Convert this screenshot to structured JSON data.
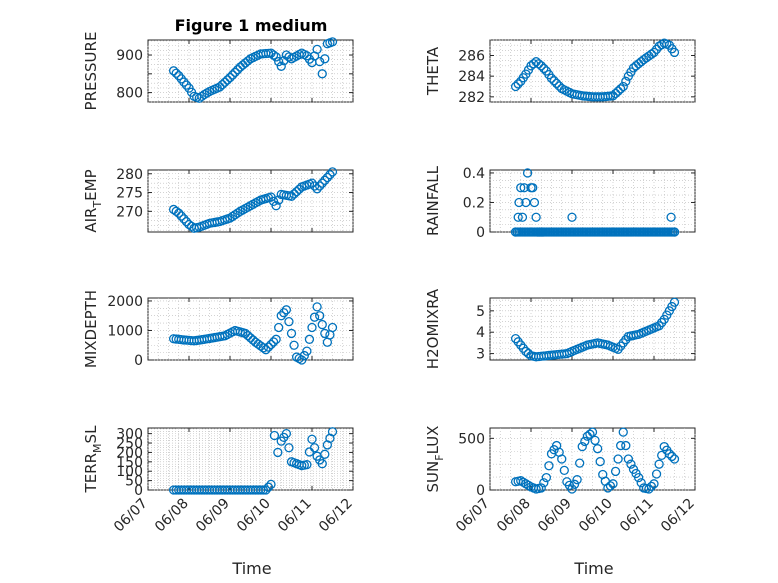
{
  "figure": {
    "title": "Figure 1 medium",
    "color": "#0072BD",
    "grid": true,
    "marker": "circle"
  },
  "chart_data": [
    {
      "id": "pressure",
      "type": "scatter",
      "ylabel": "PRESSURE",
      "ylim": [
        775,
        940
      ],
      "yticks": [
        800,
        850,
        900
      ],
      "yticklabels": [
        "800",
        "",
        "900"
      ],
      "xticklabels_visible": false,
      "title": "Figure 1 medium",
      "x": [
        "06/07 15:00",
        "06/07 18:00",
        "06/07 21:00",
        "06/08 00:00",
        "06/08 03:00",
        "06/08 06:00",
        "06/08 09:00",
        "06/08 12:00",
        "06/08 18:00",
        "06/09 00:00",
        "06/09 06:00",
        "06/09 12:00",
        "06/09 18:00",
        "06/10 00:00",
        "06/10 03:00",
        "06/10 06:00",
        "06/10 09:00",
        "06/10 12:00",
        "06/10 18:00",
        "06/10 21:00",
        "06/11 00:00",
        "06/11 03:00",
        "06/11 06:00",
        "06/11 09:00",
        "06/11 12:00"
      ],
      "y": [
        858,
        845,
        828,
        812,
        790,
        785,
        795,
        803,
        815,
        840,
        868,
        890,
        903,
        905,
        895,
        870,
        900,
        890,
        905,
        898,
        880,
        915,
        850,
        930,
        935
      ]
    },
    {
      "id": "theta",
      "type": "scatter",
      "ylabel": "THETA",
      "ylim": [
        281.5,
        287.5
      ],
      "yticks": [
        282,
        284,
        286
      ],
      "yticklabels": [
        "282",
        "284",
        "286"
      ],
      "xticklabels_visible": false,
      "x": [
        "06/07 15:00",
        "06/07 18:00",
        "06/07 21:00",
        "06/08 00:00",
        "06/08 03:00",
        "06/08 06:00",
        "06/08 09:00",
        "06/08 12:00",
        "06/08 18:00",
        "06/09 00:00",
        "06/09 06:00",
        "06/09 12:00",
        "06/09 18:00",
        "06/10 00:00",
        "06/10 06:00",
        "06/10 09:00",
        "06/10 12:00",
        "06/10 18:00",
        "06/11 00:00",
        "06/11 03:00",
        "06/11 06:00",
        "06/11 09:00",
        "06/11 12:00"
      ],
      "y": [
        283.0,
        283.5,
        284.2,
        285.0,
        285.4,
        285.0,
        284.5,
        283.8,
        282.8,
        282.3,
        282.1,
        282.0,
        282.0,
        282.1,
        283.0,
        284.0,
        284.8,
        285.6,
        286.3,
        286.9,
        287.2,
        287.0,
        286.3
      ]
    },
    {
      "id": "air_temp",
      "type": "scatter",
      "ylabel": "AIR_TEMP",
      "ylim": [
        264.5,
        281
      ],
      "yticks": [
        270,
        275,
        280
      ],
      "yticklabels": [
        "270",
        "275",
        "280"
      ],
      "xticklabels_visible": false,
      "x": [
        "06/07 15:00",
        "06/07 18:00",
        "06/07 21:00",
        "06/08 00:00",
        "06/08 03:00",
        "06/08 06:00",
        "06/08 12:00",
        "06/08 18:00",
        "06/09 00:00",
        "06/09 06:00",
        "06/09 12:00",
        "06/09 18:00",
        "06/10 00:00",
        "06/10 03:00",
        "06/10 06:00",
        "06/10 12:00",
        "06/10 18:00",
        "06/11 00:00",
        "06/11 03:00",
        "06/11 06:00",
        "06/11 09:00",
        "06/11 12:00"
      ],
      "y": [
        270.5,
        269.5,
        268.0,
        266.5,
        265.5,
        265.8,
        266.8,
        267.3,
        268.2,
        270.0,
        271.5,
        273.0,
        273.8,
        271.5,
        274.5,
        274.0,
        276.5,
        277.5,
        276.0,
        277.5,
        279.0,
        280.5
      ]
    },
    {
      "id": "rainfall",
      "type": "scatter",
      "ylabel": "RAINFALL",
      "ylim": [
        0,
        0.42
      ],
      "yticks": [
        0,
        0.2,
        0.4
      ],
      "yticklabels": [
        "0",
        "0.2",
        "0.4"
      ],
      "xticklabels_visible": false,
      "x": [
        "06/07 15:00",
        "06/07 16:30",
        "06/07 17:00",
        "06/07 18:00",
        "06/07 19:00",
        "06/07 20:00",
        "06/07 21:00",
        "06/07 22:00",
        "06/08 00:00",
        "06/08 01:00",
        "06/08 02:00",
        "06/08 03:00",
        "06/08 04:00",
        "06/08 05:00",
        "06/08 06:00",
        "06/08 07:00",
        "06/09 00:00",
        "06/11 10:00",
        "06/11 12:00"
      ],
      "y": [
        0,
        0.1,
        0.2,
        0.3,
        0.1,
        0.3,
        0.2,
        0.4,
        0.3,
        0.3,
        0.2,
        0.1,
        0,
        0,
        0,
        0,
        0.1,
        0.1,
        0
      ],
      "baseline_series": {
        "from": "06/07 15:00",
        "to": "06/11 12:00",
        "value": 0
      }
    },
    {
      "id": "mixdepth",
      "type": "scatter",
      "ylabel": "MIXDEPTH",
      "ylim": [
        0,
        2100
      ],
      "yticks": [
        0,
        1000,
        2000
      ],
      "yticklabels": [
        "0",
        "1000",
        "2000"
      ],
      "xticklabels_visible": false,
      "x": [
        "06/07 15:00",
        "06/07 21:00",
        "06/08 03:00",
        "06/08 09:00",
        "06/08 15:00",
        "06/08 21:00",
        "06/09 03:00",
        "06/09 09:00",
        "06/09 15:00",
        "06/09 21:00",
        "06/10 03:00",
        "06/10 06:00",
        "06/10 09:00",
        "06/10 12:00",
        "06/10 15:00",
        "06/10 18:00",
        "06/10 21:00",
        "06/11 00:00",
        "06/11 03:00",
        "06/11 06:00",
        "06/11 09:00",
        "06/11 12:00"
      ],
      "y": [
        720,
        680,
        650,
        700,
        760,
        820,
        1000,
        900,
        600,
        350,
        700,
        1500,
        1700,
        900,
        100,
        0,
        300,
        1100,
        1800,
        1200,
        600,
        1100
      ]
    },
    {
      "id": "h2omixra",
      "type": "scatter",
      "ylabel": "H2OMIXRA",
      "ylim": [
        2.7,
        5.6
      ],
      "yticks": [
        3,
        4,
        5
      ],
      "yticklabels": [
        "3",
        "4",
        "5"
      ],
      "xticklabels_visible": false,
      "x": [
        "06/07 15:00",
        "06/07 18:00",
        "06/07 21:00",
        "06/08 00:00",
        "06/08 03:00",
        "06/08 09:00",
        "06/08 15:00",
        "06/08 21:00",
        "06/09 03:00",
        "06/09 09:00",
        "06/09 15:00",
        "06/09 21:00",
        "06/10 03:00",
        "06/10 09:00",
        "06/10 15:00",
        "06/10 21:00",
        "06/11 03:00",
        "06/11 06:00",
        "06/11 09:00",
        "06/11 12:00"
      ],
      "y": [
        3.7,
        3.4,
        3.1,
        2.9,
        2.85,
        2.9,
        2.95,
        3.0,
        3.2,
        3.4,
        3.5,
        3.4,
        3.2,
        3.8,
        3.9,
        4.1,
        4.3,
        4.6,
        5.0,
        5.4
      ]
    },
    {
      "id": "terr_msl",
      "type": "scatter",
      "ylabel": "TERR_MSL",
      "ylim": [
        0,
        330
      ],
      "yticks": [
        0,
        50,
        100,
        150,
        200,
        250,
        300
      ],
      "yticklabels": [
        "0",
        "50",
        "100",
        "150",
        "200",
        "250",
        "300"
      ],
      "xticklabels_visible": true,
      "x": [
        "06/07 15:00",
        "06/08 00:00",
        "06/08 12:00",
        "06/09 00:00",
        "06/09 12:00",
        "06/09 21:00",
        "06/10 00:00",
        "06/10 02:00",
        "06/10 04:00",
        "06/10 06:00",
        "06/10 09:00",
        "06/10 12:00",
        "06/10 15:00",
        "06/10 18:00",
        "06/10 21:00",
        "06/11 00:00",
        "06/11 03:00",
        "06/11 06:00",
        "06/11 09:00",
        "06/11 12:00"
      ],
      "y": [
        0,
        0,
        0,
        0,
        0,
        0,
        30,
        290,
        200,
        260,
        300,
        150,
        140,
        130,
        135,
        270,
        180,
        140,
        240,
        310
      ]
    },
    {
      "id": "sun_flux",
      "type": "scatter",
      "ylabel": "SUN_FLUX",
      "ylim": [
        0,
        600
      ],
      "yticks": [
        0,
        500
      ],
      "yticklabels": [
        "0",
        "500"
      ],
      "xticklabels_visible": true,
      "x": [
        "06/07 15:00",
        "06/07 18:00",
        "06/07 21:00",
        "06/08 00:00",
        "06/08 03:00",
        "06/08 06:00",
        "06/08 09:00",
        "06/08 12:00",
        "06/08 15:00",
        "06/08 18:00",
        "06/08 21:00",
        "06/09 00:00",
        "06/09 03:00",
        "06/09 06:00",
        "06/09 09:00",
        "06/09 12:00",
        "06/09 15:00",
        "06/09 18:00",
        "06/09 21:00",
        "06/10 00:00",
        "06/10 03:00",
        "06/10 06:00",
        "06/10 09:00",
        "06/10 12:00",
        "06/10 15:00",
        "06/10 18:00",
        "06/10 21:00",
        "06/11 00:00",
        "06/11 03:00",
        "06/11 06:00",
        "06/11 09:00",
        "06/11 12:00"
      ],
      "y": [
        80,
        90,
        60,
        30,
        10,
        20,
        120,
        350,
        430,
        300,
        80,
        10,
        100,
        420,
        520,
        560,
        400,
        150,
        20,
        60,
        300,
        560,
        300,
        200,
        120,
        20,
        10,
        60,
        250,
        420,
        350,
        300
      ]
    }
  ],
  "xaxis": {
    "ticklabels": [
      "06/07",
      "06/08",
      "06/09",
      "06/10",
      "06/11",
      "06/12"
    ],
    "ticks": [
      "06/07 00:00",
      "06/08 00:00",
      "06/09 00:00",
      "06/10 00:00",
      "06/11 00:00",
      "06/12 00:00"
    ],
    "xlim": [
      "06/07 00:00",
      "06/12 00:00"
    ],
    "xlabel": "Time"
  }
}
